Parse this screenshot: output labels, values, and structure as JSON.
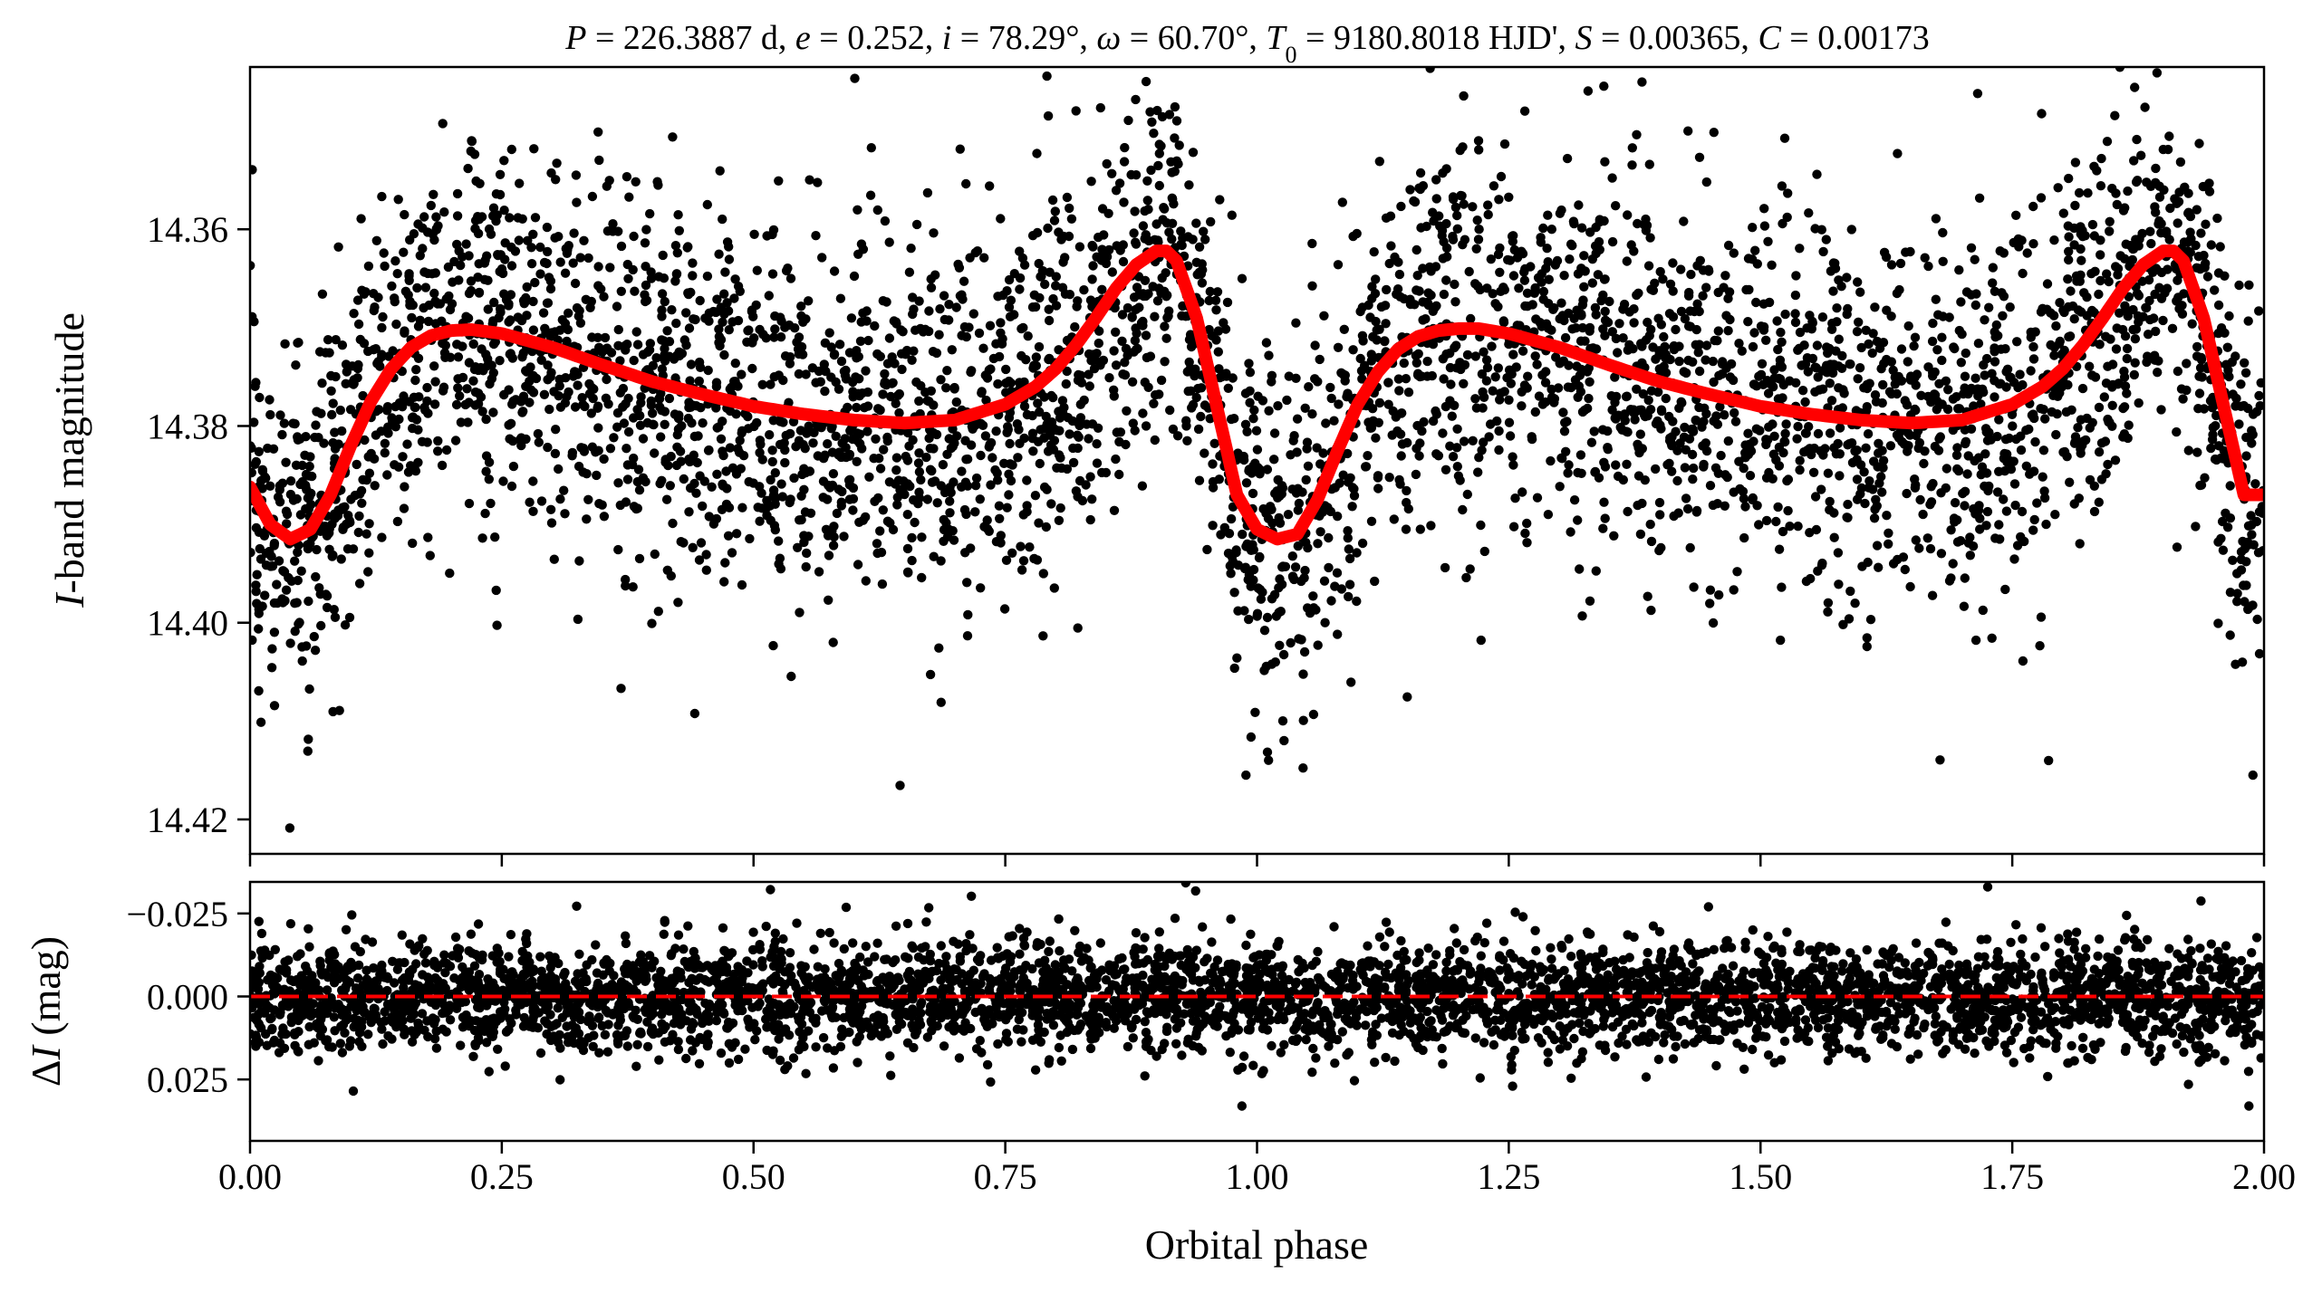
{
  "chart_data": [
    {
      "type": "scatter",
      "panel": "top",
      "title": "P = 226.3887 d, e = 0.252, i = 78.29°, ω = 60.70°, T0 = 9180.8018 HJD', S = 0.00365, C = 0.00173",
      "title_parts": [
        {
          "t": "P",
          "it": true
        },
        {
          "t": " = 226.3887 d, "
        },
        {
          "t": "e",
          "it": true
        },
        {
          "t": " = 0.252, "
        },
        {
          "t": "i",
          "it": true
        },
        {
          "t": " = 78.29°, "
        },
        {
          "t": "ω",
          "it": true
        },
        {
          "t": " = 60.70°, "
        },
        {
          "t": "T",
          "it": true
        },
        {
          "t": "0",
          "sub": true
        },
        {
          "t": " = 9180.8018 HJD', "
        },
        {
          "t": "S",
          "it": true
        },
        {
          "t": " = 0.00365, "
        },
        {
          "t": "C",
          "it": true
        },
        {
          "t": " = 0.00173"
        }
      ],
      "ylabel_parts": [
        {
          "t": "I",
          "it": true
        },
        {
          "t": "-band magnitude"
        }
      ],
      "xlabel": "",
      "xlim": [
        0.0,
        2.0
      ],
      "ylim": [
        14.4235,
        14.3435
      ],
      "y_inverted": true,
      "yticks": [
        14.36,
        14.38,
        14.4,
        14.42
      ],
      "ytick_labels": [
        "14.36",
        "14.38",
        "14.40",
        "14.42"
      ],
      "xticks": [
        0,
        0.25,
        0.5,
        0.75,
        1.0,
        1.25,
        1.5,
        1.75,
        2.0
      ],
      "grid": false,
      "scatter_color": "#000000",
      "scatter_density": "~10000 points per panel",
      "scatter_scatter_mag": 0.009,
      "notable_outliers": [
        {
          "x": 0.989,
          "y": 14.4155
        },
        {
          "x": 1.989,
          "y": 14.4155
        },
        {
          "x": 0.22,
          "y": 14.351
        },
        {
          "x": 1.22,
          "y": 14.351
        }
      ],
      "series": [
        {
          "name": "model",
          "color": "#ff0000",
          "style": "solid",
          "x": [
            0.0,
            0.02,
            0.04,
            0.06,
            0.08,
            0.1,
            0.12,
            0.14,
            0.16,
            0.18,
            0.2,
            0.22,
            0.25,
            0.3,
            0.35,
            0.4,
            0.45,
            0.5,
            0.55,
            0.6,
            0.65,
            0.7,
            0.75,
            0.78,
            0.8,
            0.82,
            0.84,
            0.86,
            0.88,
            0.9,
            0.91,
            0.92,
            0.94,
            0.96,
            0.98,
            1.0,
            1.02,
            1.04,
            1.06,
            1.08,
            1.1,
            1.12,
            1.14,
            1.16,
            1.18,
            1.2,
            1.22,
            1.25,
            1.3,
            1.35,
            1.4,
            1.45,
            1.5,
            1.55,
            1.6,
            1.65,
            1.7,
            1.75,
            1.78,
            1.8,
            1.82,
            1.84,
            1.86,
            1.88,
            1.9,
            1.91,
            1.92,
            1.94,
            1.96,
            1.98,
            2.0
          ],
          "y": [
            14.3862,
            14.39,
            14.3915,
            14.3905,
            14.387,
            14.382,
            14.3775,
            14.3742,
            14.372,
            14.3708,
            14.3703,
            14.3702,
            14.3706,
            14.372,
            14.3738,
            14.3755,
            14.3768,
            14.378,
            14.3788,
            14.3794,
            14.3797,
            14.3794,
            14.3778,
            14.376,
            14.3742,
            14.3718,
            14.369,
            14.366,
            14.3636,
            14.3622,
            14.3622,
            14.3632,
            14.369,
            14.378,
            14.387,
            14.3905,
            14.3915,
            14.391,
            14.3875,
            14.3825,
            14.3778,
            14.3745,
            14.3722,
            14.3709,
            14.3703,
            14.3701,
            14.3701,
            14.3706,
            14.372,
            14.3738,
            14.3755,
            14.3768,
            14.378,
            14.3788,
            14.3794,
            14.3797,
            14.3794,
            14.3778,
            14.376,
            14.3742,
            14.3718,
            14.369,
            14.366,
            14.3636,
            14.3622,
            14.3622,
            14.3632,
            14.369,
            14.378,
            14.387,
            14.387
          ]
        }
      ]
    },
    {
      "type": "scatter",
      "panel": "bottom",
      "xlabel": "Orbital phase",
      "ylabel_parts": [
        {
          "t": "Δ"
        },
        {
          "t": "I",
          "it": true
        },
        {
          "t": " (mag)"
        }
      ],
      "xlim": [
        0.0,
        2.0
      ],
      "ylim": [
        0.0435,
        -0.0345
      ],
      "y_inverted": true,
      "yticks": [
        -0.025,
        0.0,
        0.025
      ],
      "ytick_labels": [
        "−0.025",
        "0.000",
        "0.025"
      ],
      "xticks": [
        0,
        0.25,
        0.5,
        0.75,
        1.0,
        1.25,
        1.5,
        1.75,
        2.0
      ],
      "xtick_labels": [
        "0.00",
        "0.25",
        "0.50",
        "0.75",
        "1.00",
        "1.25",
        "1.50",
        "1.75",
        "2.00"
      ],
      "grid": false,
      "scatter_color": "#000000",
      "residual_scatter_mag": 0.008,
      "notable_outliers": [
        {
          "x": 0.985,
          "y": 0.033
        },
        {
          "x": 1.985,
          "y": 0.033
        }
      ],
      "series": [
        {
          "name": "zero",
          "color": "#ff0000",
          "style": "dashed",
          "x": [
            0.0,
            2.0
          ],
          "y": [
            0.0,
            0.0
          ]
        }
      ]
    }
  ]
}
